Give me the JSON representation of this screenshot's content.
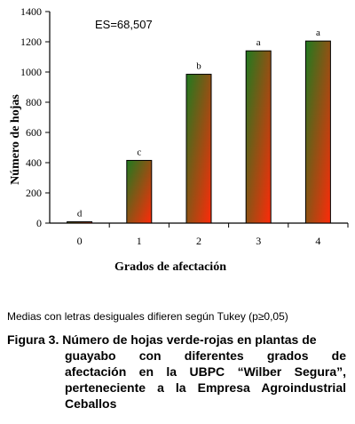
{
  "chart_data": {
    "type": "bar",
    "categories": [
      "0",
      "1",
      "2",
      "3",
      "4"
    ],
    "values": [
      5,
      415,
      985,
      1140,
      1205
    ],
    "letters": [
      "d",
      "c",
      "b",
      "a",
      "a"
    ],
    "xlabel": "Grados de afectación",
    "ylabel": "Número de hojas",
    "ylim": [
      0,
      1400
    ],
    "yticks": [
      0,
      200,
      400,
      600,
      800,
      1000,
      1200,
      1400
    ],
    "annotation": "ES=68,507",
    "grid": false,
    "bar_gradient": {
      "top": "#1f7a1f",
      "bottom": "#ff2a0a"
    }
  },
  "footnote": "Medias con letras desiguales difieren según Tukey (p≥0,05)",
  "caption": {
    "line1": "Figura 3. Número de hojas verde-rojas en plantas de",
    "line2": "guayabo con diferentes grados de",
    "line3": "afectación en la UBPC “Wilber Segura”,",
    "line4": "perteneciente a la Empresa Agroindustrial",
    "line5": "Ceballos"
  }
}
